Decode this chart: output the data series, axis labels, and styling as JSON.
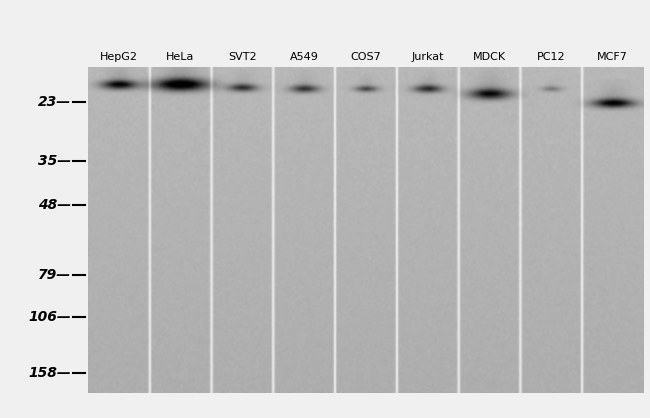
{
  "cell_lines": [
    "HepG2",
    "HeLa",
    "SVT2",
    "A549",
    "COS7",
    "Jurkat",
    "MDCK",
    "PC12",
    "MCF7"
  ],
  "mw_markers": [
    158,
    106,
    79,
    48,
    35,
    23
  ],
  "band_intensities": [
    0.82,
    1.0,
    0.6,
    0.58,
    0.5,
    0.62,
    0.78,
    0.28,
    0.85
  ],
  "band_mw": [
    20.5,
    20.5,
    21.0,
    21.2,
    21.2,
    21.2,
    22.0,
    21.2,
    23.5
  ],
  "band_sigma_x": [
    12,
    18,
    10,
    10,
    8,
    10,
    14,
    7,
    14
  ],
  "band_sigma_y": [
    3,
    4,
    2.5,
    2.5,
    2.0,
    2.5,
    3.5,
    1.8,
    3.0
  ],
  "lane_bg_color": 178,
  "figure_bg": "#f0f0f0",
  "marker_fontsize": 10,
  "label_fontsize": 8,
  "num_lanes": 9,
  "log_mw_min": 1.255,
  "log_mw_max": 2.26
}
